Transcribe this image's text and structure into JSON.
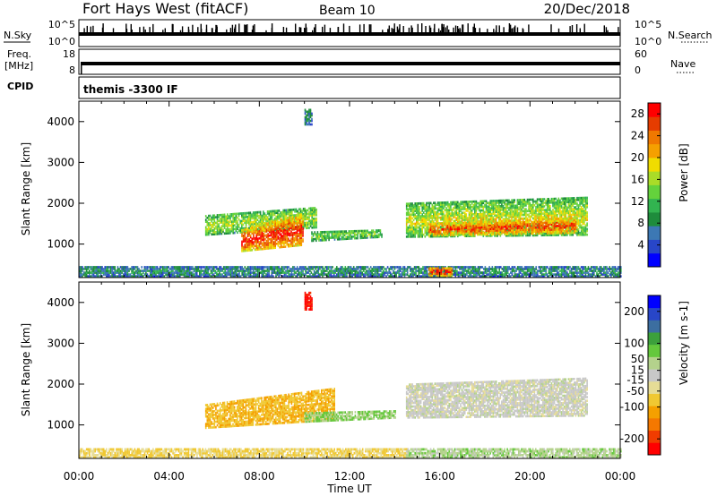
{
  "header": {
    "station": "Fort Hays West (fitACF)",
    "beam": "Beam 10",
    "date": "20/Dec/2018"
  },
  "noise_panel": {
    "left_label": "N.Sky",
    "left_ticks": [
      "10^5",
      "10^0"
    ],
    "right_label": "N.Search",
    "right_ticks": [
      "10^5",
      "10^0"
    ]
  },
  "freq_panel": {
    "left_label_1": "Freq.",
    "left_label_2": "[MHz]",
    "left_ticks": [
      "18",
      "8"
    ],
    "right_label": "Nave",
    "right_ticks": [
      "60",
      "0"
    ]
  },
  "cpid_panel": {
    "label": "CPID",
    "text": "themis -3300 IF"
  },
  "colors": {
    "power_scale": [
      "#0000ff",
      "#2846c8",
      "#3c78b4",
      "#1e8c3c",
      "#32b450",
      "#64d23c",
      "#aadc28",
      "#f0dc00",
      "#f5a000",
      "#f07800",
      "#e63c00",
      "#ff0000"
    ],
    "velocity_scale": [
      "#ff0000",
      "#f03c00",
      "#f57800",
      "#f5a000",
      "#f0c832",
      "#e6dc96",
      "#c8c8c8",
      "#b4d28c",
      "#64c83c",
      "#3ca03c",
      "#3c6ea0",
      "#2846c8",
      "#0000ff"
    ],
    "ground_scatter": "#b4b4b4"
  },
  "chart_data": [
    {
      "type": "heatmap",
      "name": "power",
      "x_unit": "hours UT",
      "xlim": [
        0,
        24
      ],
      "ylim": [
        180,
        4500
      ],
      "ylabel": "Slant Range [km]",
      "y_ticks": [
        1000,
        2000,
        3000,
        4000
      ],
      "colorbar": {
        "label": "Power [dB]",
        "ticks": [
          4,
          8,
          12,
          16,
          20,
          24,
          28
        ],
        "range": [
          0,
          30
        ]
      },
      "regions": [
        {
          "t": [
            5.6,
            10.5
          ],
          "r0": [
            1200,
            1380
          ],
          "r1": [
            1700,
            1900
          ],
          "level": 0.55
        },
        {
          "t": [
            7.2,
            9.9
          ],
          "r0": [
            800,
            950
          ],
          "r1": [
            1350,
            1750
          ],
          "level": 0.95
        },
        {
          "t": [
            10.3,
            13.4
          ],
          "r0": [
            1050,
            1150
          ],
          "r1": [
            1300,
            1350
          ],
          "level": 0.5
        },
        {
          "t": [
            14.5,
            22.5
          ],
          "r0": [
            1150,
            1200
          ],
          "r1": [
            2000,
            2150
          ],
          "level": 0.6
        },
        {
          "t": [
            15.5,
            22.0
          ],
          "r0": [
            1180,
            1250
          ],
          "r1": [
            1500,
            1650
          ],
          "level": 0.9
        },
        {
          "t": [
            0.0,
            24.0
          ],
          "r0": [
            180,
            180
          ],
          "r1": [
            450,
            450
          ],
          "level": 0.3
        },
        {
          "t": [
            15.5,
            16.5
          ],
          "r0": [
            200,
            200
          ],
          "r1": [
            420,
            420
          ],
          "level": 0.95
        },
        {
          "t": [
            10.0,
            10.3
          ],
          "r0": [
            3900,
            3900
          ],
          "r1": [
            4300,
            4300
          ],
          "level": 0.3
        }
      ]
    },
    {
      "type": "heatmap",
      "name": "velocity",
      "x_unit": "hours UT",
      "xlim": [
        0,
        24
      ],
      "ylim": [
        180,
        4500
      ],
      "xlabel": "Time UT",
      "ylabel": "Slant Range [km]",
      "x_ticks": [
        "00:00",
        "04:00",
        "08:00",
        "12:00",
        "16:00",
        "20:00",
        "00:00"
      ],
      "y_ticks": [
        1000,
        2000,
        3000,
        4000
      ],
      "colorbar": {
        "label": "Velocity [m s-1]",
        "ticks": [
          200,
          100,
          50,
          15,
          -15,
          -50,
          -100,
          -200
        ],
        "range": [
          -250,
          250
        ]
      },
      "regions": [
        {
          "t": [
            5.6,
            11.3
          ],
          "r0": [
            900,
            1100
          ],
          "r1": [
            1500,
            1900
          ],
          "velocity": -90
        },
        {
          "t": [
            10.0,
            14.0
          ],
          "r0": [
            1050,
            1150
          ],
          "r1": [
            1300,
            1350
          ],
          "velocity": 60
        },
        {
          "t": [
            14.5,
            22.5
          ],
          "r0": [
            1150,
            1200
          ],
          "r1": [
            2000,
            2150
          ],
          "velocity": 0
        },
        {
          "t": [
            0.0,
            14.5
          ],
          "r0": [
            180,
            180
          ],
          "r1": [
            420,
            420
          ],
          "velocity": -60
        },
        {
          "t": [
            14.5,
            24.0
          ],
          "r0": [
            180,
            180
          ],
          "r1": [
            420,
            420
          ],
          "velocity": 40
        },
        {
          "t": [
            10.0,
            10.3
          ],
          "r0": [
            3800,
            3800
          ],
          "r1": [
            4250,
            4250
          ],
          "velocity": -230
        }
      ]
    }
  ]
}
